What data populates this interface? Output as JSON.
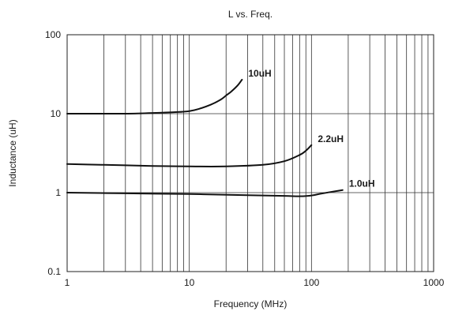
{
  "chart_data": {
    "type": "line",
    "title": "L vs. Freq.",
    "xlabel": "Frequency (MHz)",
    "ylabel": "Inductance (uH)",
    "x_scale": "log",
    "y_scale": "log",
    "xlim": [
      1,
      1000
    ],
    "ylim": [
      0.1,
      100
    ],
    "x_ticks": [
      "1",
      "10",
      "100",
      "1000"
    ],
    "y_ticks": [
      "0.1",
      "1",
      "10",
      "100"
    ],
    "grid": true,
    "series": [
      {
        "name": "10uH",
        "x": [
          1,
          2,
          3,
          5,
          8,
          10,
          12,
          15,
          18,
          20,
          22,
          25,
          27
        ],
        "y": [
          10,
          10,
          10,
          10.2,
          10.5,
          10.8,
          11.5,
          13,
          15,
          17,
          19,
          23,
          27
        ]
      },
      {
        "name": "2.2uH",
        "x": [
          1,
          2,
          3,
          5,
          10,
          20,
          40,
          60,
          80,
          90,
          100
        ],
        "y": [
          2.3,
          2.25,
          2.22,
          2.18,
          2.15,
          2.15,
          2.25,
          2.5,
          3.0,
          3.4,
          4.0
        ]
      },
      {
        "name": "1.0uH",
        "x": [
          1,
          3,
          10,
          30,
          60,
          80,
          100,
          120,
          150,
          180
        ],
        "y": [
          1.0,
          0.98,
          0.96,
          0.93,
          0.91,
          0.9,
          0.92,
          0.97,
          1.03,
          1.08
        ]
      }
    ]
  }
}
